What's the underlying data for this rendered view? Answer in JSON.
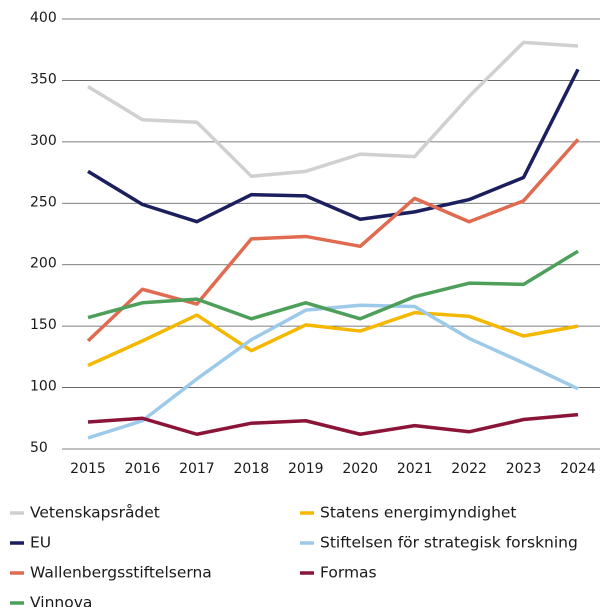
{
  "chart_data": {
    "type": "line",
    "x": [
      "2015",
      "2016",
      "2017",
      "2018",
      "2019",
      "2020",
      "2021",
      "2022",
      "2023",
      "2024"
    ],
    "series": [
      {
        "name": "Vetenskapsrådet",
        "color": "#d0d0d0",
        "values": [
          345,
          318,
          316,
          272,
          276,
          290,
          288,
          337,
          381,
          378
        ]
      },
      {
        "name": "Statens energimyndighet",
        "color": "#f5b800",
        "values": [
          118,
          138,
          159,
          130,
          151,
          146,
          161,
          158,
          142,
          150
        ]
      },
      {
        "name": "EU",
        "color": "#1b1f5e",
        "values": [
          276,
          249,
          235,
          257,
          256,
          237,
          243,
          253,
          271,
          359
        ]
      },
      {
        "name": "Stiftelsen för strategisk forskning",
        "color": "#9ecae9",
        "values": [
          59,
          73,
          107,
          139,
          163,
          167,
          166,
          140,
          120,
          99
        ]
      },
      {
        "name": "Wallenbergsstiftelserna",
        "color": "#e06b50",
        "values": [
          138,
          180,
          168,
          221,
          223,
          215,
          254,
          235,
          252,
          302
        ]
      },
      {
        "name": "Formas",
        "color": "#8b1538",
        "values": [
          72,
          75,
          62,
          71,
          73,
          62,
          69,
          64,
          74,
          78
        ]
      },
      {
        "name": "Vinnova",
        "color": "#4e9f5a",
        "values": [
          157,
          169,
          172,
          156,
          169,
          156,
          174,
          185,
          184,
          211
        ]
      }
    ],
    "ylim": [
      50,
      400
    ],
    "yticks": [
      50,
      100,
      150,
      200,
      250,
      300,
      350,
      400
    ],
    "grid": true
  }
}
